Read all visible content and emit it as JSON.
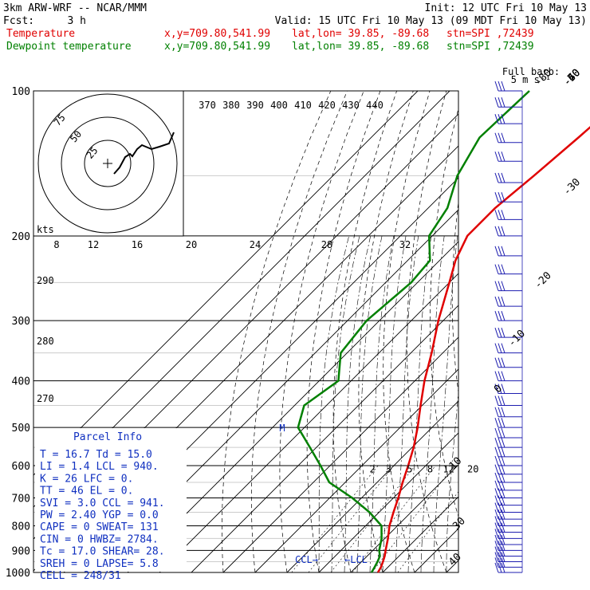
{
  "header": {
    "model": "3km ARW-WRF -- NCAR/MMM",
    "init": "Init: 12 UTC Fri 10 May 13",
    "fcst_label": "Fcst:",
    "fcst_value": "3 h",
    "valid": "Valid: 15 UTC Fri 10 May 13 (09 MDT Fri 10 May 13)"
  },
  "legend": [
    {
      "name": "Temperature",
      "xy": "x,y=709.80,541.99",
      "latlon": "lat,lon= 39.85, -89.68",
      "stn": "stn=SPI ,72439",
      "color": "#e00000"
    },
    {
      "name": "Dewpoint temperature",
      "xy": "x,y=709.80,541.99",
      "latlon": "lat,lon= 39.85, -89.68",
      "stn": "stn=SPI ,72439",
      "color": "#008000"
    }
  ],
  "wind_key": {
    "line1": "Full barb:",
    "line2": "5 m s⁻¹"
  },
  "pressure_labels": [
    "100",
    "200",
    "300",
    "400",
    "500",
    "600",
    "700",
    "800",
    "900",
    "1000"
  ],
  "temperature_labels": [
    "-80",
    "-70",
    "-60",
    "-50",
    "-40",
    "-30",
    "-20",
    "-10",
    "0",
    "10",
    "30",
    "40"
  ],
  "theta_labels": [
    "370",
    "380",
    "390",
    "400",
    "410",
    "420",
    "430",
    "440"
  ],
  "theta_side_labels": [
    "290",
    "280",
    "270"
  ],
  "hodograph": {
    "ring_labels": [
      "75",
      "50",
      "25"
    ],
    "units_label": "kts",
    "speed_axis_labels": [
      "8",
      "12",
      "16",
      "20",
      "24",
      "28",
      "32"
    ]
  },
  "mixing_ratio_labels": [
    "2",
    "3",
    "5",
    "8",
    "12",
    "20"
  ],
  "markers": {
    "m": "M",
    "ccl": "CCL→",
    "lcl": "←LCL"
  },
  "parcel": {
    "title": "Parcel Info",
    "rows": [
      "T  =   16.7  Td =  15.0",
      "LI =    1.4  LCL =  940.",
      "K  =     26  LFC =    0.",
      "TT =     46  EL  =    0.",
      "SVI =   3.0  CCL =  941.",
      "PW =   2.40  YGP =   0.0",
      "CAPE =    0  SWEAT=  131",
      "CIN =     0  HWBZ= 2784.",
      "Tc =   17.0  SHEAR=  28.",
      "SREH =    0  LAPSE=  5.8",
      "CELL = 248/31"
    ]
  },
  "chart_data": {
    "type": "line",
    "title": "",
    "xlabel": "",
    "ylabel": "",
    "y_scale": "log",
    "ylim": [
      1000,
      100
    ],
    "series": [
      {
        "name": "Temperature",
        "color": "#e00000",
        "pressure": [
          1000,
          975,
          950,
          925,
          900,
          850,
          800,
          750,
          700,
          650,
          600,
          550,
          500,
          450,
          400,
          350,
          300,
          250,
          225,
          200,
          175,
          150,
          125,
          100
        ],
        "value": [
          18.5,
          17.8,
          16.7,
          15.5,
          14.0,
          11.0,
          7.5,
          4.5,
          1.5,
          -2.0,
          -5.5,
          -9.5,
          -14.5,
          -20.5,
          -27.0,
          -33.5,
          -41.5,
          -50.0,
          -55.0,
          -59.0,
          -59.0,
          -57.0,
          -55.0,
          -53.0
        ]
      },
      {
        "name": "Dewpoint temperature",
        "color": "#008000",
        "pressure": [
          1000,
          975,
          950,
          925,
          900,
          850,
          800,
          750,
          700,
          650,
          600,
          550,
          500,
          450,
          400,
          350,
          300,
          250,
          225,
          200,
          175,
          150,
          125,
          100
        ],
        "value": [
          16.5,
          15.8,
          15.0,
          14.0,
          12.0,
          9.0,
          5.0,
          -3.0,
          -13.0,
          -25.0,
          -33.0,
          -42.0,
          -52.0,
          -57.0,
          -54.0,
          -62.0,
          -64.0,
          -62.0,
          -63.0,
          -71.0,
          -74.0,
          -81.0,
          -86.0,
          -85.0
        ]
      }
    ],
    "wind_barbs": {
      "pressure": [
        1000,
        975,
        950,
        925,
        900,
        875,
        850,
        825,
        800,
        775,
        750,
        725,
        700,
        675,
        650,
        625,
        600,
        575,
        550,
        525,
        500,
        475,
        450,
        425,
        400,
        375,
        350,
        325,
        300,
        280,
        260,
        240,
        220,
        200,
        185,
        170,
        155,
        140,
        128,
        117,
        108,
        100
      ],
      "note": "barbs drawn along right edge"
    }
  }
}
